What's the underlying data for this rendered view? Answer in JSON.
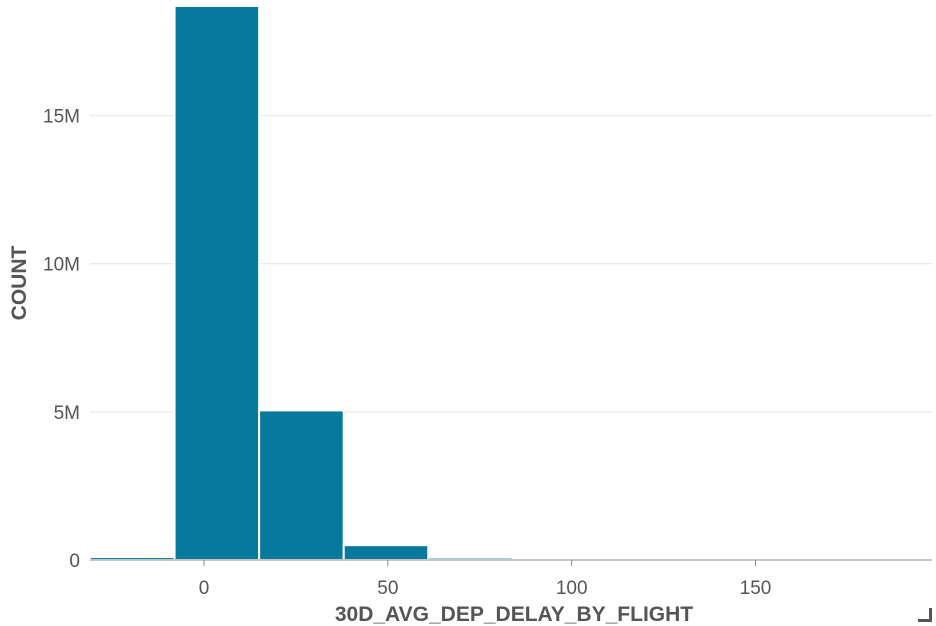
{
  "chart_data": {
    "type": "bar",
    "title": "",
    "xlabel": "30D_AVG_DEP_DELAY_BY_FLIGHT",
    "ylabel": "COUNT",
    "color": "#07799c",
    "grid": true,
    "xlim": [
      -31,
      198
    ],
    "ylim": [
      0,
      18.7
    ],
    "x_ticks": [
      0,
      50,
      100,
      150
    ],
    "x_tick_labels": [
      "0",
      "50",
      "100",
      "150"
    ],
    "y_ticks": [
      0,
      5,
      10,
      15
    ],
    "y_tick_labels": [
      "0",
      "5M",
      "10M",
      "15M"
    ],
    "y_unit": "millions",
    "bins": [
      {
        "x0": -31,
        "x1": -8,
        "count": 0.1
      },
      {
        "x0": -8,
        "x1": 15,
        "count": 18.7
      },
      {
        "x0": 15,
        "x1": 38,
        "count": 5.05
      },
      {
        "x0": 38,
        "x1": 61,
        "count": 0.5
      },
      {
        "x0": 61,
        "x1": 84,
        "count": 0.08
      },
      {
        "x0": 84,
        "x1": 107,
        "count": 0.03
      },
      {
        "x0": 107,
        "x1": 130,
        "count": 0.01
      },
      {
        "x0": 130,
        "x1": 153,
        "count": 0.005
      },
      {
        "x0": 153,
        "x1": 176,
        "count": 0.003
      },
      {
        "x0": 176,
        "x1": 198,
        "count": 0.002
      }
    ]
  }
}
